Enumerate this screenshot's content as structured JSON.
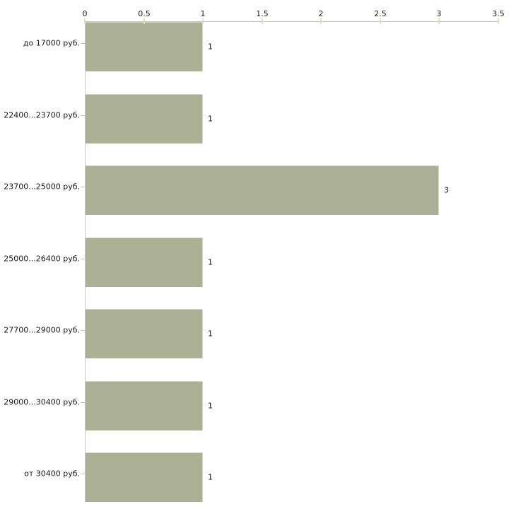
{
  "chart_data": {
    "type": "bar",
    "orientation": "horizontal",
    "title": "",
    "xlabel": "",
    "ylabel": "",
    "categories": [
      "до 17000 руб.",
      "22400...23700 руб.",
      "23700...25000 руб.",
      "25000...26400 руб.",
      "27700...29000 руб.",
      "29000...30400 руб.",
      "от 30400 руб."
    ],
    "values": [
      1,
      1,
      3,
      1,
      1,
      1,
      1
    ],
    "value_labels": [
      "1",
      "1",
      "3",
      "1",
      "1",
      "1",
      "1"
    ],
    "xlim": [
      0,
      3.5
    ],
    "x_tick_values": [
      0,
      0.5,
      1,
      1.5,
      2,
      2.5,
      3,
      3.5
    ],
    "x_tick_labels": [
      "0",
      "0.5",
      "1",
      "1.5",
      "2",
      "2.5",
      "3",
      "3.5"
    ],
    "axis_position": "top",
    "grid": false,
    "legend": false,
    "colors": {
      "bar_fill": "#ACB196",
      "bar_edge_highlight": "#D7D9C9",
      "axis_line": "#C6C6C2",
      "x_tick_mark": "#DEDEC6",
      "category_tick_mark": "#C2C2BC",
      "text": "#1A1A1A",
      "background": "#FFFFFF"
    }
  }
}
